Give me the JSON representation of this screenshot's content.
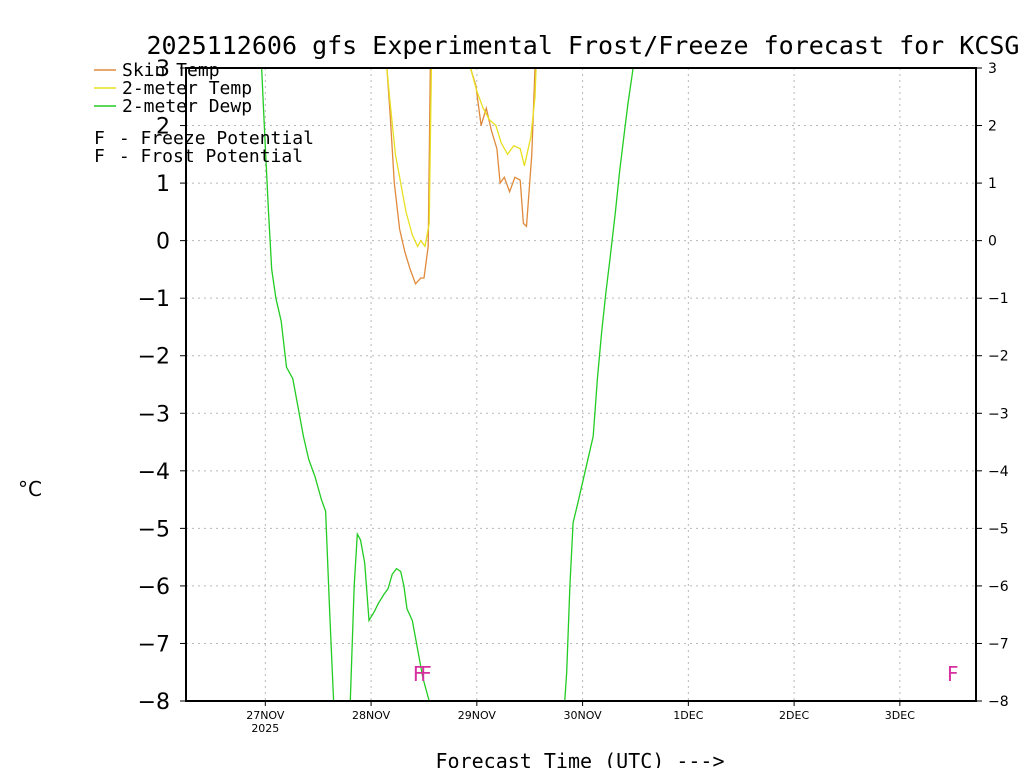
{
  "chart_data": {
    "type": "line",
    "title": "2025112606 gfs Experimental Frost/Freeze forecast for KCSG",
    "xlabel": "Forecast Time (UTC) --->",
    "ylabel": "°C",
    "ylim": [
      -8,
      3
    ],
    "y_ticks": [
      -8,
      -7,
      -6,
      -5,
      -4,
      -3,
      -2,
      -1,
      0,
      1,
      2,
      3
    ],
    "x_range_days": [
      -0.75,
      6.72
    ],
    "x_ticks": [
      {
        "day": 0,
        "label": "27NOV",
        "sublabel": "2025"
      },
      {
        "day": 1,
        "label": "28NOV",
        "sublabel": ""
      },
      {
        "day": 2,
        "label": "29NOV",
        "sublabel": ""
      },
      {
        "day": 3,
        "label": "30NOV",
        "sublabel": ""
      },
      {
        "day": 4,
        "label": "1DEC",
        "sublabel": ""
      },
      {
        "day": 5,
        "label": "2DEC",
        "sublabel": ""
      },
      {
        "day": 6,
        "label": "3DEC",
        "sublabel": ""
      }
    ],
    "series": [
      {
        "name": "Skin Temp",
        "color": "#e08a3c",
        "points": [
          [
            0.48,
            3.3
          ],
          [
            0.52,
            3.0
          ],
          [
            1.15,
            3.0
          ],
          [
            1.18,
            2.2
          ],
          [
            1.22,
            1.0
          ],
          [
            1.27,
            0.2
          ],
          [
            1.32,
            -0.2
          ],
          [
            1.37,
            -0.5
          ],
          [
            1.42,
            -0.75
          ],
          [
            1.47,
            -0.65
          ],
          [
            1.5,
            -0.65
          ],
          [
            1.54,
            -0.1
          ],
          [
            1.56,
            3.0
          ],
          [
            1.57,
            3.5
          ],
          [
            1.9,
            3.2
          ],
          [
            1.94,
            3.0
          ],
          [
            1.99,
            2.7
          ],
          [
            2.04,
            2.0
          ],
          [
            2.09,
            2.3
          ],
          [
            2.14,
            1.9
          ],
          [
            2.19,
            1.6
          ],
          [
            2.22,
            1.0
          ],
          [
            2.26,
            1.1
          ],
          [
            2.31,
            0.85
          ],
          [
            2.36,
            1.1
          ],
          [
            2.41,
            1.05
          ],
          [
            2.44,
            0.3
          ],
          [
            2.47,
            0.25
          ],
          [
            2.52,
            1.5
          ],
          [
            2.55,
            3.0
          ],
          [
            2.56,
            3.5
          ]
        ]
      },
      {
        "name": "2-meter Temp",
        "color": "#e8e020",
        "points": [
          [
            1.15,
            3.0
          ],
          [
            1.18,
            2.4
          ],
          [
            1.23,
            1.5
          ],
          [
            1.28,
            1.0
          ],
          [
            1.33,
            0.5
          ],
          [
            1.39,
            0.1
          ],
          [
            1.44,
            -0.1
          ],
          [
            1.47,
            0.0
          ],
          [
            1.51,
            -0.1
          ],
          [
            1.55,
            0.3
          ],
          [
            1.57,
            3.0
          ],
          [
            1.58,
            3.5
          ],
          [
            1.94,
            3.0
          ],
          [
            2.0,
            2.6
          ],
          [
            2.06,
            2.3
          ],
          [
            2.12,
            2.1
          ],
          [
            2.18,
            2.0
          ],
          [
            2.23,
            1.7
          ],
          [
            2.29,
            1.5
          ],
          [
            2.35,
            1.65
          ],
          [
            2.41,
            1.6
          ],
          [
            2.45,
            1.3
          ],
          [
            2.51,
            1.8
          ],
          [
            2.55,
            2.5
          ],
          [
            2.56,
            3.0
          ],
          [
            2.57,
            3.5
          ]
        ]
      },
      {
        "name": "2-meter Dewp",
        "color": "#22cc22",
        "points": [
          [
            -0.04,
            3.2
          ],
          [
            -0.01,
            2.0
          ],
          [
            0.03,
            0.5
          ],
          [
            0.06,
            -0.5
          ],
          [
            0.1,
            -1.0
          ],
          [
            0.15,
            -1.4
          ],
          [
            0.2,
            -2.2
          ],
          [
            0.26,
            -2.4
          ],
          [
            0.31,
            -2.9
          ],
          [
            0.36,
            -3.4
          ],
          [
            0.41,
            -3.8
          ],
          [
            0.47,
            -4.1
          ],
          [
            0.53,
            -4.5
          ],
          [
            0.57,
            -4.7
          ],
          [
            0.61,
            -6.5
          ],
          [
            0.65,
            -8.2
          ],
          [
            0.8,
            -8.2
          ],
          [
            0.84,
            -6.0
          ],
          [
            0.87,
            -5.1
          ],
          [
            0.9,
            -5.2
          ],
          [
            0.94,
            -5.6
          ],
          [
            0.98,
            -6.6
          ],
          [
            1.03,
            -6.45
          ],
          [
            1.07,
            -6.3
          ],
          [
            1.12,
            -6.15
          ],
          [
            1.16,
            -6.05
          ],
          [
            1.2,
            -5.8
          ],
          [
            1.24,
            -5.7
          ],
          [
            1.28,
            -5.75
          ],
          [
            1.31,
            -6.0
          ],
          [
            1.34,
            -6.4
          ],
          [
            1.39,
            -6.6
          ],
          [
            1.44,
            -7.1
          ],
          [
            1.49,
            -7.6
          ],
          [
            1.55,
            -8.0
          ],
          [
            1.57,
            -8.3
          ],
          [
            2.82,
            -8.3
          ],
          [
            2.85,
            -7.5
          ],
          [
            2.88,
            -6.0
          ],
          [
            2.91,
            -4.9
          ],
          [
            2.95,
            -4.6
          ],
          [
            3.0,
            -4.2
          ],
          [
            3.05,
            -3.8
          ],
          [
            3.1,
            -3.4
          ],
          [
            3.14,
            -2.4
          ],
          [
            3.18,
            -1.6
          ],
          [
            3.22,
            -0.9
          ],
          [
            3.26,
            -0.3
          ],
          [
            3.31,
            0.5
          ],
          [
            3.35,
            1.2
          ],
          [
            3.39,
            1.8
          ],
          [
            3.43,
            2.4
          ],
          [
            3.47,
            2.9
          ],
          [
            3.49,
            3.2
          ]
        ]
      }
    ],
    "legend": [
      {
        "label": "Skin Temp",
        "color": "#e08a3c"
      },
      {
        "label": "2-meter Temp",
        "color": "#e8e020"
      },
      {
        "label": "2-meter Dewp",
        "color": "#22cc22"
      }
    ],
    "potential_legend": [
      {
        "symbol": "F",
        "label": " - Freeze Potential",
        "color": "#d62fa0"
      },
      {
        "symbol": "F",
        "label": " - Frost Potential",
        "color": "#5a64e6"
      }
    ],
    "markers": [
      {
        "day": 1.45,
        "symbol": "F",
        "kind": "freeze",
        "color": "#d62fa0"
      },
      {
        "day": 1.52,
        "symbol": "F",
        "kind": "freeze",
        "color": "#d62fa0"
      },
      {
        "day": 6.5,
        "symbol": "F",
        "kind": "freeze",
        "color": "#d62fa0"
      }
    ]
  }
}
